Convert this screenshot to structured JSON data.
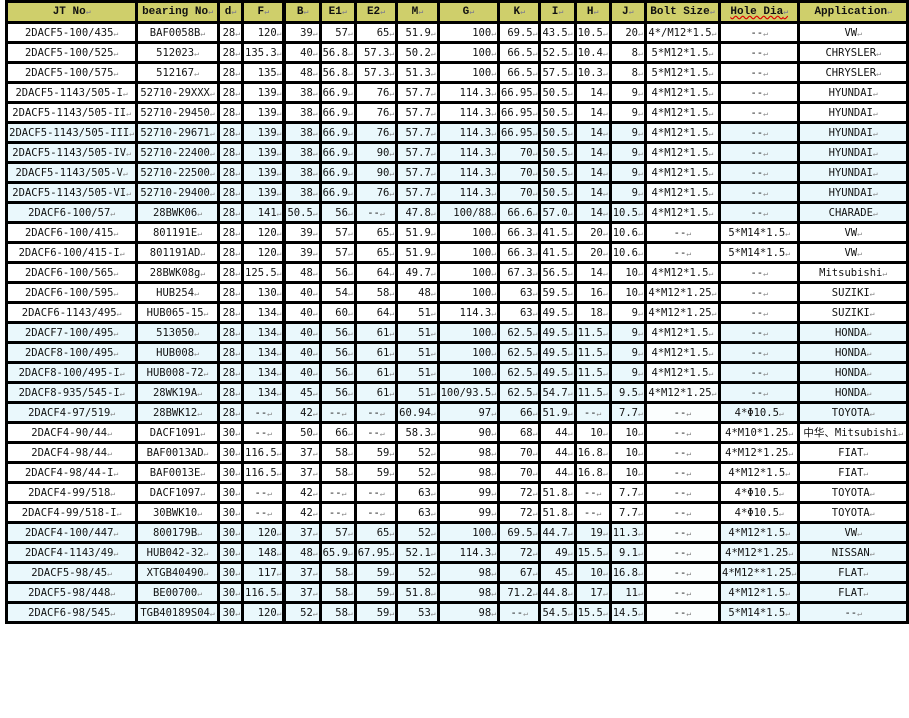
{
  "table": {
    "headers": [
      "JT No",
      "bearing No",
      "d",
      "F",
      "B",
      "E1",
      "E2",
      "M",
      "G",
      "K",
      "I",
      "H",
      "J",
      "Bolt Size",
      "Hole Dia",
      "Application"
    ],
    "header_color": "#cfcf6b",
    "alt_row_color": "#eaf8fc",
    "rows": [
      [
        "2DACF5-100/435",
        "BAF0058B",
        "28",
        "120",
        "39",
        "57",
        "65",
        "51.9",
        "100",
        "69.5",
        "43.5",
        "10.5",
        "20",
        "4*/M12*1.5",
        "--",
        "VW"
      ],
      [
        "2DACF5-100/525",
        "512023",
        "28",
        "135.3",
        "40",
        "56.8",
        "57.3",
        "50.2",
        "100",
        "66.5",
        "52.5",
        "10.4",
        "8",
        "5*M12*1.5",
        "--",
        "CHRYSLER"
      ],
      [
        "2DACF5-100/575",
        "512167",
        "28",
        "135",
        "48",
        "56.8",
        "57.3",
        "51.3",
        "100",
        "66.5",
        "57.5",
        "10.3",
        "8",
        "5*M12*1.5",
        "--",
        "CHRYSLER"
      ],
      [
        "2DACF5-1143/505-I",
        "52710-29XXX",
        "28",
        "139",
        "38",
        "66.9",
        "76",
        "57.7",
        "114.3",
        "66.95",
        "50.5",
        "14",
        "9",
        "4*M12*1.5",
        "--",
        "HYUNDAI"
      ],
      [
        "2DACF5-1143/505-II",
        "52710-29450",
        "28",
        "139",
        "38",
        "66.9",
        "76",
        "57.7",
        "114.3",
        "66.95",
        "50.5",
        "14",
        "9",
        "4*M12*1.5",
        "--",
        "HYUNDAI"
      ],
      [
        "2DACF5-1143/505-III",
        "52710-29671",
        "28",
        "139",
        "38",
        "66.9",
        "76",
        "57.7",
        "114.3",
        "66.95",
        "50.5",
        "14",
        "9",
        "4*M12*1.5",
        "--",
        "HYUNDAI"
      ],
      [
        "2DACF5-1143/505-IV",
        "52710-22400",
        "28",
        "139",
        "38",
        "66.9",
        "90",
        "57.7",
        "114.3",
        "70",
        "50.5",
        "14",
        "9",
        "4*M12*1.5",
        "--",
        "HYUNDAI"
      ],
      [
        "2DACF5-1143/505-V",
        "52710-22500",
        "28",
        "139",
        "38",
        "66.9",
        "90",
        "57.7",
        "114.3",
        "70",
        "50.5",
        "14",
        "9",
        "4*M12*1.5",
        "--",
        "HYUNDAI"
      ],
      [
        "2DACF5-1143/505-VI",
        "52710-29400",
        "28",
        "139",
        "38",
        "66.9",
        "76",
        "57.7",
        "114.3",
        "70",
        "50.5",
        "14",
        "9",
        "4*M12*1.5",
        "--",
        "HYUNDAI"
      ],
      [
        "2DACF6-100/57",
        "28BWK06",
        "28",
        "141",
        "50.5",
        "56",
        "--",
        "47.8",
        "100/88",
        "66.6",
        "57.0",
        "14",
        "10.5",
        "4*M12*1.5",
        "--",
        "CHARADE"
      ],
      [
        "2DACF6-100/415",
        "801191E",
        "28",
        "120",
        "39",
        "57",
        "65",
        "51.9",
        "100",
        "66.3",
        "41.5",
        "20",
        "10.6",
        "--",
        "5*M14*1.5",
        "VW"
      ],
      [
        "2DACF6-100/415-I",
        "801191AD",
        "28",
        "120",
        "39",
        "57",
        "65",
        "51.9",
        "100",
        "66.3",
        "41.5",
        "20",
        "10.6",
        "--",
        "5*M14*1.5",
        "VW"
      ],
      [
        "2DACF6-100/565",
        "28BWK08g",
        "28",
        "125.5",
        "48",
        "56",
        "64",
        "49.7",
        "100",
        "67.3",
        "56.5",
        "14",
        "10",
        "4*M12*1.5",
        "--",
        "Mitsubishi"
      ],
      [
        "2DACF6-100/595",
        "HUB254",
        "28",
        "130",
        "40",
        "54",
        "58",
        "48",
        "100",
        "63",
        "59.5",
        "16",
        "10",
        "4*M12*1.25",
        "--",
        "SUZIKI"
      ],
      [
        "2DACF6-1143/495",
        "HUB065-15",
        "28",
        "134",
        "40",
        "60",
        "64",
        "51",
        "114.3",
        "63",
        "49.5",
        "18",
        "9",
        "4*M12*1.25",
        "--",
        "SUZIKI"
      ],
      [
        "2DACF7-100/495",
        "513050",
        "28",
        "134",
        "40",
        "56",
        "61",
        "51",
        "100",
        "62.5",
        "49.5",
        "11.5",
        "9",
        "4*M12*1.5",
        "--",
        "HONDA"
      ],
      [
        "2DACF8-100/495",
        "HUB008",
        "28",
        "134",
        "40",
        "56",
        "61",
        "51",
        "100",
        "62.5",
        "49.5",
        "11.5",
        "9",
        "4*M12*1.5",
        "--",
        "HONDA"
      ],
      [
        "2DACF8-100/495-I",
        "HUB008-72",
        "28",
        "134",
        "40",
        "56",
        "61",
        "51",
        "100",
        "62.5",
        "49.5",
        "11.5",
        "9",
        "4*M12*1.5",
        "--",
        "HONDA"
      ],
      [
        "2DACF8-935/545-I",
        "28WK19A",
        "28",
        "134",
        "45",
        "56",
        "61",
        "51",
        "100/93.5",
        "62.5",
        "54.7",
        "11.5",
        "9.5",
        "4*M12*1.25",
        "--",
        "HONDA"
      ],
      [
        "2DACF4-97/519",
        "28BWK12",
        "28",
        "--",
        "42",
        "--",
        "--",
        "60.94",
        "97",
        "66",
        "51.9",
        "--",
        "7.7",
        "--",
        "4*Φ10.5",
        "TOYOTA"
      ],
      [
        "2DACF4-90/44",
        "DACF1091",
        "30",
        "--",
        "50",
        "66",
        "--",
        "58.3",
        "90",
        "68",
        "44",
        "10",
        "10",
        "--",
        "4*M10*1.25",
        "中华、Mitsubishi"
      ],
      [
        "2DACF4-98/44",
        "BAF0013AD",
        "30",
        "116.5",
        "37",
        "58",
        "59",
        "52",
        "98",
        "70",
        "44",
        "16.8",
        "10",
        "--",
        "4*M12*1.25",
        "FIAT"
      ],
      [
        "2DACF4-98/44-I",
        "BAF0013E",
        "30",
        "116.5",
        "37",
        "58",
        "59",
        "52",
        "98",
        "70",
        "44",
        "16.8",
        "10",
        "--",
        "4*M12*1.5",
        "FIAT"
      ],
      [
        "2DACF4-99/518",
        "DACF1097",
        "30",
        "--",
        "42",
        "--",
        "--",
        "63",
        "99",
        "72",
        "51.8",
        "--",
        "7.7",
        "--",
        "4*Φ10.5",
        "TOYOTA"
      ],
      [
        "2DACF4-99/518-I",
        "30BWK10",
        "30",
        "--",
        "42",
        "--",
        "--",
        "63",
        "99",
        "72",
        "51.8",
        "--",
        "7.7",
        "--",
        "4*Φ10.5",
        "TOYOTA"
      ],
      [
        "2DACF4-100/447",
        "800179B",
        "30",
        "120",
        "37",
        "57",
        "65",
        "52",
        "100",
        "69.5",
        "44.7",
        "19",
        "11.3",
        "--",
        "4*M12*1.5",
        "VW"
      ],
      [
        "2DACF4-1143/49",
        "HUB042-32",
        "30",
        "148",
        "48",
        "65.9",
        "67.95",
        "52.1",
        "114.3",
        "72",
        "49",
        "15.5",
        "9.1",
        "--",
        "4*M12*1.25",
        "NISSAN"
      ],
      [
        "2DACF5-98/45",
        "XTGB40490",
        "30",
        "117",
        "37",
        "58",
        "59",
        "52",
        "98",
        "67",
        "45",
        "10",
        "16.8",
        "--",
        "4*M12**1.25",
        "FLAT"
      ],
      [
        "2DACF5-98/448",
        "BE00700",
        "30",
        "116.5",
        "37",
        "58",
        "59",
        "51.8",
        "98",
        "71.2",
        "44.8",
        "17",
        "11",
        "--",
        "4*M12*1.5",
        "FLAT"
      ],
      [
        "2DACF6-98/545",
        "TGB40189S04",
        "30",
        "120",
        "52",
        "58",
        "59",
        "53",
        "98",
        "--",
        "54.5",
        "15.5",
        "14.5",
        "--",
        "5*M14*1.5",
        "--"
      ]
    ]
  }
}
